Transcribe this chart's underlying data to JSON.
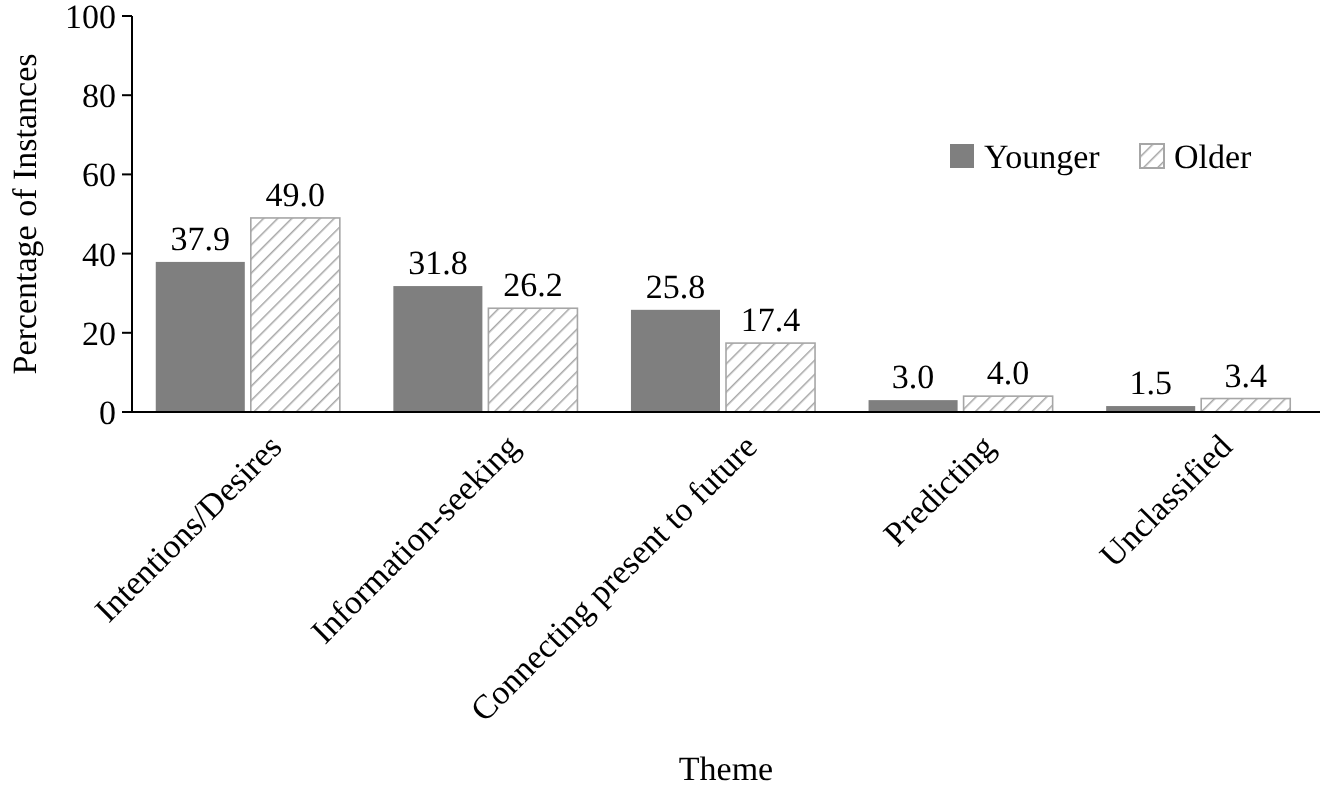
{
  "chart_data": {
    "type": "bar",
    "xlabel": "Theme",
    "ylabel": "Percentage of Instances",
    "categories": [
      "Intentions/Desires",
      "Information-seeking",
      "Connecting present to future",
      "Predicting",
      "Unclassified"
    ],
    "series": [
      {
        "name": "Younger",
        "color": "#7f7f7f",
        "values": [
          37.9,
          31.8,
          25.8,
          3.0,
          1.5
        ],
        "value_labels": [
          "37.9",
          "31.8",
          "25.8",
          "3.0",
          "1.5"
        ]
      },
      {
        "name": "Older",
        "color": "#a6a6a6",
        "values": [
          49.0,
          26.2,
          17.4,
          4.0,
          3.4
        ],
        "value_labels": [
          "49.0",
          "26.2",
          "17.4",
          "4.0",
          "3.4"
        ]
      }
    ],
    "ylim": [
      0,
      100
    ],
    "yticks": [
      0,
      20,
      40,
      60,
      80,
      100
    ],
    "grid": false,
    "legend": "top right"
  }
}
